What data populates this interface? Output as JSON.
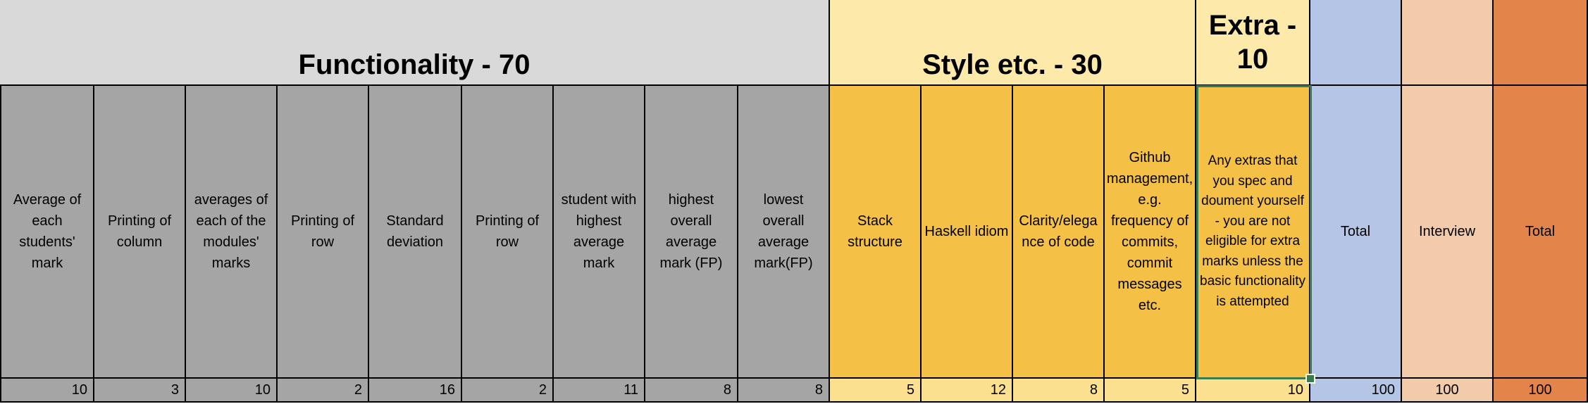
{
  "sections": {
    "functionality": "Functionality - 70",
    "style": "Style etc.  - 30",
    "extra": "Extra -\n10"
  },
  "columns": [
    {
      "label": "Average of each students' mark",
      "marks": "10"
    },
    {
      "label": "Printing of column",
      "marks": "3"
    },
    {
      "label": "averages of each of the modules' marks",
      "marks": "10"
    },
    {
      "label": "Printing of row",
      "marks": "2"
    },
    {
      "label": "Standard deviation",
      "marks": "16"
    },
    {
      "label": "Printing of row",
      "marks": "2"
    },
    {
      "label": "student with highest average mark",
      "marks": "11"
    },
    {
      "label": "highest overall average mark (FP)",
      "marks": "8"
    },
    {
      "label": "lowest overall average mark(FP)",
      "marks": "8"
    },
    {
      "label": "Stack structure",
      "marks": "5"
    },
    {
      "label": "Haskell idiom",
      "marks": "12"
    },
    {
      "label": "Clarity/elegance of code",
      "marks": "8"
    },
    {
      "label": "Github management, e.g. frequency of commits, commit messages etc.",
      "marks": "5"
    },
    {
      "label": "Any extras that you spec and doument yourself - you are not eligible for extra marks unless the basic functionality is attempted",
      "marks": "10"
    },
    {
      "label": "Total",
      "marks": "100"
    },
    {
      "label": "Interview",
      "marks": "100"
    },
    {
      "label": "Total",
      "marks": "100"
    }
  ],
  "colors": {
    "functionality_header": "#d9d9d9",
    "functionality": "#a5a5a5",
    "style_header": "#fde9a9",
    "style": "#f4c045",
    "total": "#b4c5e6",
    "interview": "#f2cbab",
    "final_total": "#e3844a",
    "selection": "#3a7b4c"
  }
}
